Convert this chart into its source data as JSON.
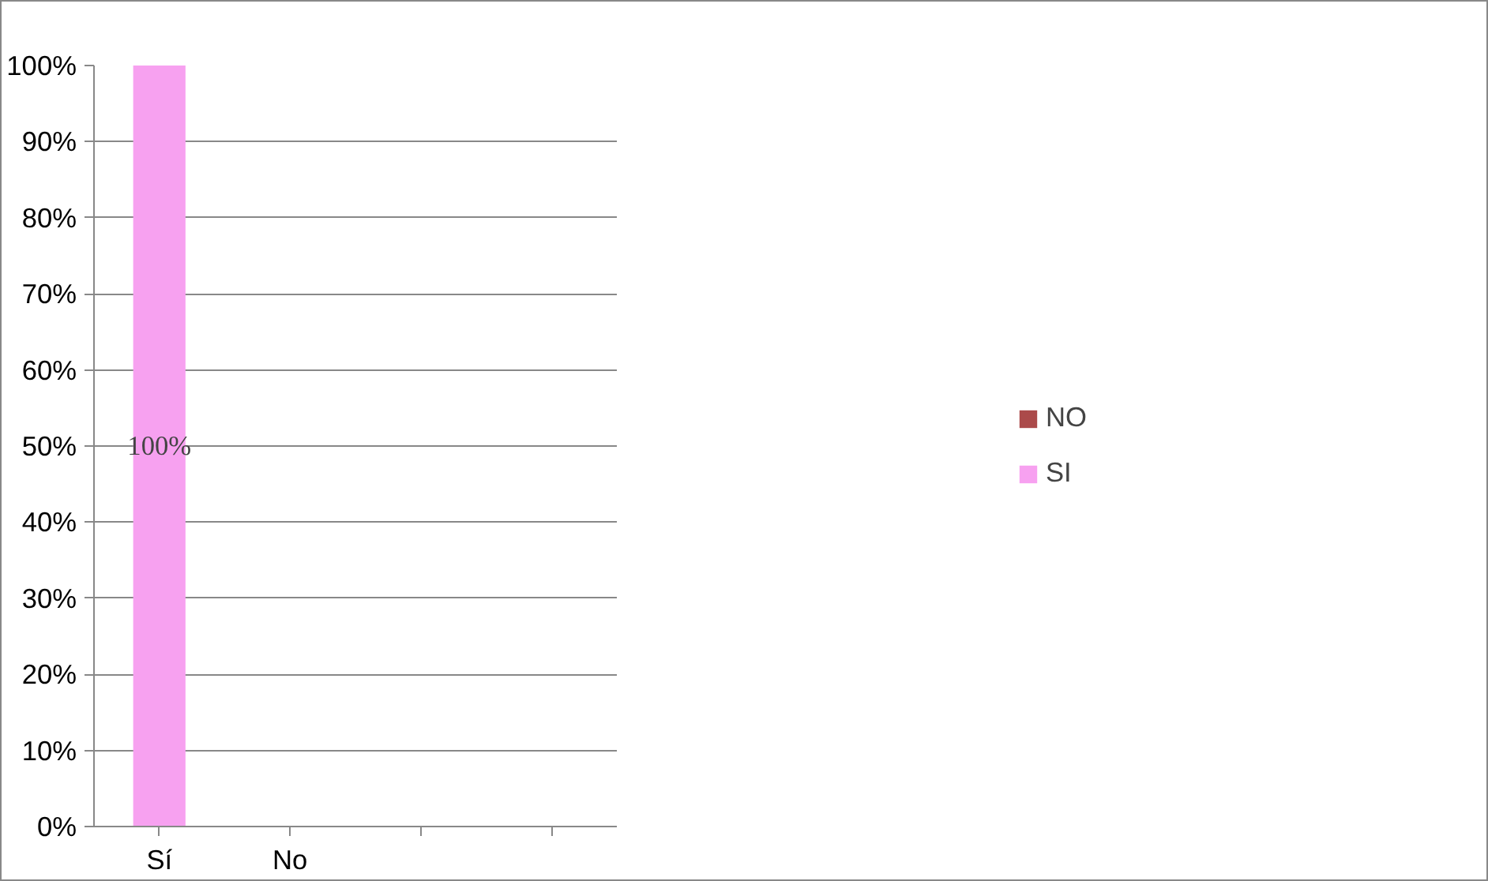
{
  "chart_data": {
    "type": "bar",
    "stacked": true,
    "categories": [
      "Sí",
      "No",
      null,
      null
    ],
    "series": [
      {
        "name": "SI",
        "color": "#f7a1f0",
        "values": [
          100,
          null,
          null,
          null
        ],
        "value_labels": [
          "100%",
          null,
          null,
          null
        ]
      },
      {
        "name": "NO",
        "color": "#ab4a4a",
        "values": [
          0,
          null,
          null,
          null
        ]
      }
    ],
    "ylim": [
      0,
      100
    ],
    "yticks": [
      {
        "value": 0,
        "label": "0%"
      },
      {
        "value": 10,
        "label": "10%"
      },
      {
        "value": 20,
        "label": "20%"
      },
      {
        "value": 30,
        "label": "30%"
      },
      {
        "value": 40,
        "label": "40%"
      },
      {
        "value": 50,
        "label": "50%"
      },
      {
        "value": 60,
        "label": "60%"
      },
      {
        "value": 70,
        "label": "70%"
      },
      {
        "value": 80,
        "label": "80%"
      },
      {
        "value": 90,
        "label": "90%"
      },
      {
        "value": 100,
        "label": "100%"
      }
    ],
    "grid": "y",
    "legend": "right"
  }
}
